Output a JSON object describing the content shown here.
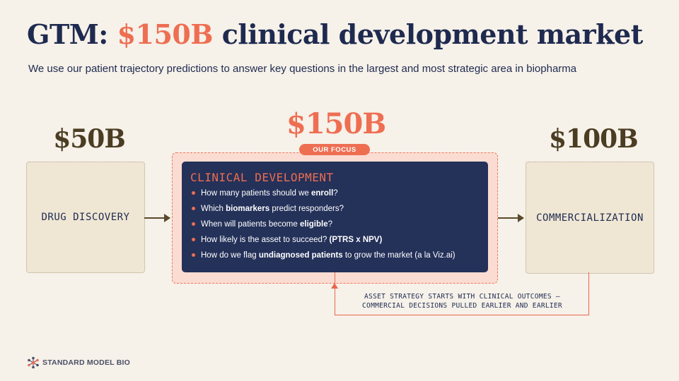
{
  "title": {
    "prefix": "GTM:",
    "accent": "$150B",
    "suffix": "clinical development market"
  },
  "subtitle": "We use our patient trajectory predictions to answer key questions in the largest and most strategic area  in biopharma",
  "segments": {
    "left": {
      "value": "$50B",
      "label": "DRUG DISCOVERY"
    },
    "center": {
      "value": "$150B",
      "badge": "OUR FOCUS",
      "label": "CLINICAL DEVELOPMENT"
    },
    "right": {
      "value": "$100B",
      "label": "COMMERCIALIZATION"
    }
  },
  "questions": [
    {
      "before": "How many patients should we ",
      "bold": "enroll",
      "after": "?"
    },
    {
      "before": "Which ",
      "bold": "biomarkers",
      "after": " predict responders?"
    },
    {
      "before": "When will patients become ",
      "bold": "eligible",
      "after": "?"
    },
    {
      "before": "How likely is the asset to succeed? ",
      "bold": "(PTRS x NPV)",
      "after": ""
    },
    {
      "before": "How do we flag ",
      "bold": "undiagnosed patients",
      "after": " to grow the market (a la Viz.ai)"
    }
  ],
  "feedback": {
    "line1": "ASSET STRATEGY STARTS WITH CLINICAL OUTCOMES —",
    "line2": "COMMERCIAL DECISIONS PULLED EARLIER AND EARLIER"
  },
  "logo": {
    "text": "STANDARD MODEL BIO",
    "icon": "molecule-icon"
  },
  "colors": {
    "navy": "#1e2a4f",
    "accent": "#ee6e52",
    "background": "#f6f1e9",
    "brown": "#4a3d22",
    "card": "#243159"
  }
}
